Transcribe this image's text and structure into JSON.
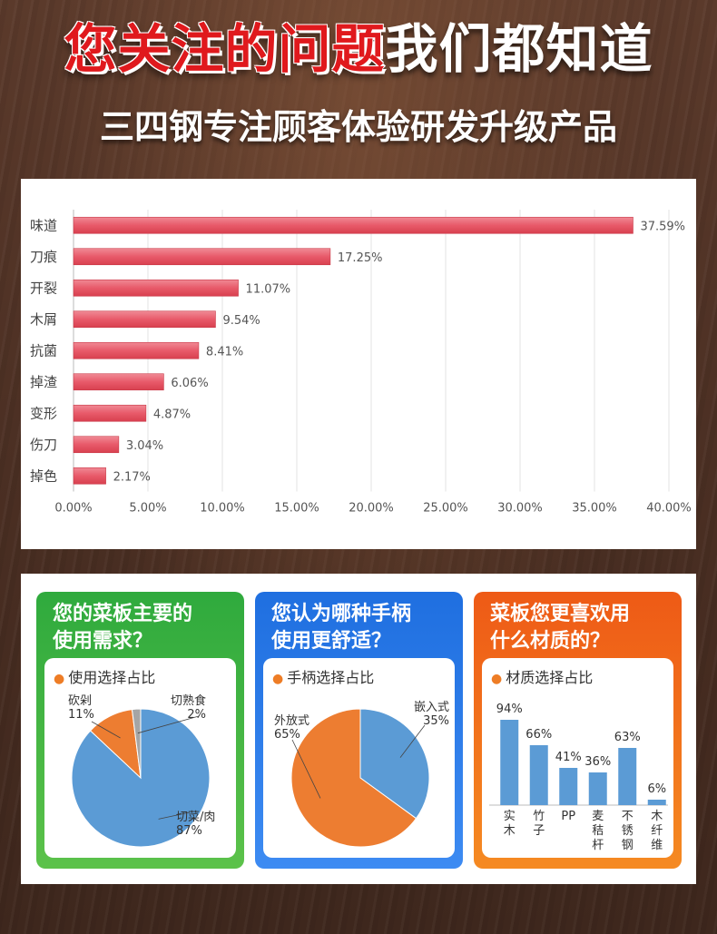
{
  "header": {
    "title_red": "您关注的问题",
    "title_white": "我们都知道",
    "subtitle": "三四钢专注顾客体验研发升级产品"
  },
  "colors": {
    "bar_fill": "#e85a6a",
    "pie_blue": "#5b9bd5",
    "pie_orange": "#ed7d31",
    "pie_gray": "#a5a5a5",
    "card1": "#2faa3d",
    "card2": "#1f6fe0",
    "card3": "#ee5a16"
  },
  "cards": {
    "usage": {
      "title": "您的菜板主要的使用需求？",
      "title_line1": "您的菜板主要的",
      "title_line2": "使用需求？",
      "label": "使用选择占比"
    },
    "handle": {
      "title": "您认为哪种手柄使用更舒适？",
      "title_line1": "您认为哪种手柄",
      "title_line2": "使用更舒适？",
      "label": "手柄选择占比"
    },
    "material": {
      "title": "菜板您更喜欢用什么材质的？",
      "title_line1": "菜板您更喜欢用",
      "title_line2": "什么材质的？",
      "label": "材质选择占比"
    }
  },
  "chart_data": [
    {
      "type": "bar",
      "orientation": "horizontal",
      "categories": [
        "味道",
        "刀痕",
        "开裂",
        "木屑",
        "抗菌",
        "掉渣",
        "变形",
        "伤刀",
        "掉色"
      ],
      "values": [
        37.59,
        17.25,
        11.07,
        9.54,
        8.41,
        6.06,
        4.87,
        3.04,
        2.17
      ],
      "value_labels": [
        "37.59%",
        "17.25%",
        "11.07%",
        "9.54%",
        "8.41%",
        "6.06%",
        "4.87%",
        "3.04%",
        "2.17%"
      ],
      "xlim": [
        0,
        40
      ],
      "xticks": [
        "0.00%",
        "5.00%",
        "10.00%",
        "15.00%",
        "20.00%",
        "25.00%",
        "30.00%",
        "35.00%",
        "40.00%"
      ],
      "grid": true
    },
    {
      "type": "pie",
      "title": "使用选择占比",
      "slices": [
        {
          "label": "切菜/肉",
          "value": 87,
          "pct": "87%",
          "color": "#5b9bd5"
        },
        {
          "label": "砍剁",
          "value": 11,
          "pct": "11%",
          "color": "#ed7d31"
        },
        {
          "label": "切熟食",
          "value": 2,
          "pct": "2%",
          "color": "#a5a5a5"
        }
      ]
    },
    {
      "type": "pie",
      "title": "手柄选择占比",
      "slices": [
        {
          "label": "嵌入式",
          "value": 35,
          "pct": "35%",
          "color": "#5b9bd5"
        },
        {
          "label": "外放式",
          "value": 65,
          "pct": "65%",
          "color": "#ed7d31"
        }
      ]
    },
    {
      "type": "bar",
      "title": "材质选择占比",
      "categories": [
        "实木",
        "竹子",
        "PP",
        "麦秸杆",
        "不锈钢",
        "木纤维"
      ],
      "values": [
        94,
        66,
        41,
        36,
        63,
        6
      ],
      "value_labels": [
        "94%",
        "66%",
        "41%",
        "36%",
        "63%",
        "6%"
      ],
      "ylim": [
        0,
        100
      ]
    }
  ]
}
